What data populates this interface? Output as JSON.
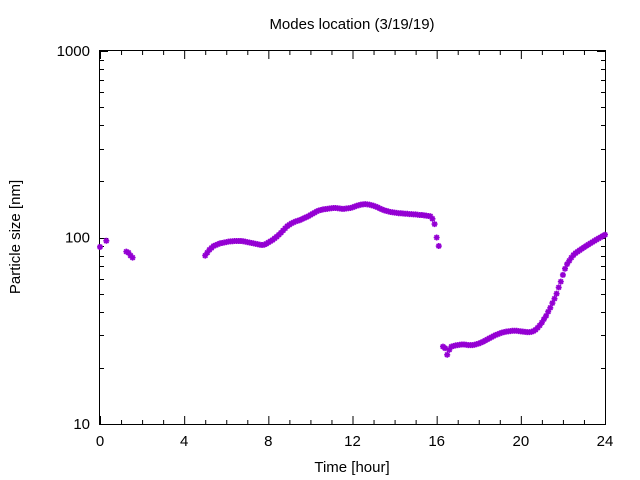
{
  "chart_data": {
    "type": "scatter",
    "title": "Modes location (3/19/19)",
    "xlabel": "Time [hour]",
    "ylabel": "Particle size [nm]",
    "xlim": [
      0,
      24
    ],
    "ylim": [
      10,
      1000
    ],
    "yscale": "log",
    "xticks": [
      "0",
      "4",
      "8",
      "12",
      "16",
      "20",
      "24"
    ],
    "yticks": [
      "10",
      "100",
      "1000"
    ],
    "grid": false,
    "marker_color": "#9400d3",
    "series": [
      {
        "points": [
          [
            0.0,
            89
          ],
          [
            0.3,
            96
          ],
          [
            1.25,
            84
          ],
          [
            1.35,
            83
          ],
          [
            1.45,
            80
          ],
          [
            1.55,
            78
          ],
          [
            5.0,
            80
          ],
          [
            5.1,
            83
          ],
          [
            5.2,
            86
          ],
          [
            5.3,
            88
          ],
          [
            5.4,
            90
          ],
          [
            5.5,
            91
          ],
          [
            5.6,
            92
          ],
          [
            5.7,
            93
          ],
          [
            5.8,
            93.5
          ],
          [
            5.9,
            94
          ],
          [
            6.0,
            94.5
          ],
          [
            6.1,
            95
          ],
          [
            6.2,
            95.3
          ],
          [
            6.3,
            95.5
          ],
          [
            6.4,
            95.7
          ],
          [
            6.5,
            95.8
          ],
          [
            6.6,
            95.8
          ],
          [
            6.7,
            95.7
          ],
          [
            6.8,
            95.5
          ],
          [
            6.9,
            95
          ],
          [
            7.0,
            94.5
          ],
          [
            7.1,
            94
          ],
          [
            7.2,
            93.5
          ],
          [
            7.3,
            93
          ],
          [
            7.4,
            92.5
          ],
          [
            7.5,
            92
          ],
          [
            7.6,
            91.5
          ],
          [
            7.7,
            91.2
          ],
          [
            7.8,
            91.5
          ],
          [
            7.9,
            92.5
          ],
          [
            8.0,
            94
          ],
          [
            8.1,
            95.5
          ],
          [
            8.2,
            97
          ],
          [
            8.3,
            99
          ],
          [
            8.4,
            101
          ],
          [
            8.5,
            103.5
          ],
          [
            8.6,
            106
          ],
          [
            8.7,
            109
          ],
          [
            8.8,
            112
          ],
          [
            8.9,
            115
          ],
          [
            9.0,
            117
          ],
          [
            9.1,
            119
          ],
          [
            9.2,
            120.5
          ],
          [
            9.3,
            122
          ],
          [
            9.4,
            123
          ],
          [
            9.5,
            124
          ],
          [
            9.6,
            125.5
          ],
          [
            9.7,
            127
          ],
          [
            9.8,
            128.5
          ],
          [
            9.9,
            130
          ],
          [
            10.0,
            132
          ],
          [
            10.1,
            134
          ],
          [
            10.2,
            136
          ],
          [
            10.3,
            138
          ],
          [
            10.4,
            139.5
          ],
          [
            10.5,
            140.5
          ],
          [
            10.6,
            141.5
          ],
          [
            10.7,
            142
          ],
          [
            10.8,
            142.5
          ],
          [
            10.9,
            143
          ],
          [
            11.0,
            143.5
          ],
          [
            11.1,
            144
          ],
          [
            11.2,
            144
          ],
          [
            11.3,
            143.5
          ],
          [
            11.4,
            143
          ],
          [
            11.5,
            142.5
          ],
          [
            11.6,
            142.5
          ],
          [
            11.7,
            143
          ],
          [
            11.8,
            143.5
          ],
          [
            11.9,
            144
          ],
          [
            12.0,
            145
          ],
          [
            12.1,
            146.5
          ],
          [
            12.2,
            148
          ],
          [
            12.3,
            149
          ],
          [
            12.4,
            150
          ],
          [
            12.5,
            150.5
          ],
          [
            12.6,
            151
          ],
          [
            12.7,
            150.5
          ],
          [
            12.8,
            150
          ],
          [
            12.9,
            149
          ],
          [
            13.0,
            148
          ],
          [
            13.1,
            146.5
          ],
          [
            13.2,
            145
          ],
          [
            13.3,
            143
          ],
          [
            13.4,
            141.5
          ],
          [
            13.5,
            140
          ],
          [
            13.6,
            139
          ],
          [
            13.7,
            138
          ],
          [
            13.8,
            137
          ],
          [
            13.9,
            136.5
          ],
          [
            14.0,
            136
          ],
          [
            14.1,
            135.5
          ],
          [
            14.2,
            135
          ],
          [
            14.3,
            135
          ],
          [
            14.4,
            134.5
          ],
          [
            14.5,
            134
          ],
          [
            14.6,
            134
          ],
          [
            14.7,
            133.5
          ],
          [
            14.8,
            133.5
          ],
          [
            14.9,
            133
          ],
          [
            15.0,
            133
          ],
          [
            15.1,
            132.5
          ],
          [
            15.2,
            132
          ],
          [
            15.3,
            132
          ],
          [
            15.4,
            131.5
          ],
          [
            15.5,
            131
          ],
          [
            15.6,
            130.5
          ],
          [
            15.7,
            130
          ],
          [
            15.8,
            126
          ],
          [
            15.9,
            118
          ],
          [
            16.0,
            100
          ],
          [
            16.1,
            90
          ],
          [
            16.3,
            26
          ],
          [
            16.4,
            25.5
          ],
          [
            16.5,
            23.5
          ],
          [
            16.6,
            25
          ],
          [
            16.7,
            26
          ],
          [
            16.8,
            26.2
          ],
          [
            16.9,
            26.4
          ],
          [
            17.0,
            26.5
          ],
          [
            17.1,
            26.6
          ],
          [
            17.2,
            26.7
          ],
          [
            17.3,
            26.7
          ],
          [
            17.4,
            26.6
          ],
          [
            17.5,
            26.5
          ],
          [
            17.6,
            26.5
          ],
          [
            17.7,
            26.5
          ],
          [
            17.8,
            26.6
          ],
          [
            17.9,
            26.8
          ],
          [
            18.0,
            27.0
          ],
          [
            18.1,
            27.3
          ],
          [
            18.2,
            27.6
          ],
          [
            18.3,
            28.0
          ],
          [
            18.4,
            28.4
          ],
          [
            18.5,
            28.8
          ],
          [
            18.6,
            29.2
          ],
          [
            18.7,
            29.6
          ],
          [
            18.8,
            30.0
          ],
          [
            18.9,
            30.3
          ],
          [
            19.0,
            30.6
          ],
          [
            19.1,
            30.9
          ],
          [
            19.2,
            31.1
          ],
          [
            19.3,
            31.3
          ],
          [
            19.4,
            31.4
          ],
          [
            19.5,
            31.5
          ],
          [
            19.6,
            31.6
          ],
          [
            19.7,
            31.6
          ],
          [
            19.8,
            31.6
          ],
          [
            19.9,
            31.5
          ],
          [
            20.0,
            31.4
          ],
          [
            20.1,
            31.3
          ],
          [
            20.2,
            31.2
          ],
          [
            20.3,
            31.1
          ],
          [
            20.4,
            31.1
          ],
          [
            20.5,
            31.2
          ],
          [
            20.6,
            31.5
          ],
          [
            20.7,
            32.0
          ],
          [
            20.8,
            32.8
          ],
          [
            20.9,
            33.8
          ],
          [
            21.0,
            35.0
          ],
          [
            21.1,
            36.5
          ],
          [
            21.2,
            38.0
          ],
          [
            21.3,
            40.0
          ],
          [
            21.4,
            42.0
          ],
          [
            21.5,
            44.5
          ],
          [
            21.6,
            47.0
          ],
          [
            21.7,
            50.0
          ],
          [
            21.8,
            54.0
          ],
          [
            21.9,
            58.0
          ],
          [
            22.0,
            63.0
          ],
          [
            22.1,
            68.0
          ],
          [
            22.2,
            72.0
          ],
          [
            22.3,
            75.0
          ],
          [
            22.4,
            78.0
          ],
          [
            22.5,
            80.5
          ],
          [
            22.6,
            82.5
          ],
          [
            22.7,
            84.0
          ],
          [
            22.8,
            85.5
          ],
          [
            22.9,
            87.0
          ],
          [
            23.0,
            88.5
          ],
          [
            23.1,
            90.0
          ],
          [
            23.2,
            91.5
          ],
          [
            23.3,
            93.0
          ],
          [
            23.4,
            94.5
          ],
          [
            23.5,
            96.0
          ],
          [
            23.6,
            97.5
          ],
          [
            23.7,
            99.0
          ],
          [
            23.8,
            100.5
          ],
          [
            23.9,
            102.0
          ],
          [
            24.0,
            103.5
          ]
        ]
      }
    ]
  }
}
